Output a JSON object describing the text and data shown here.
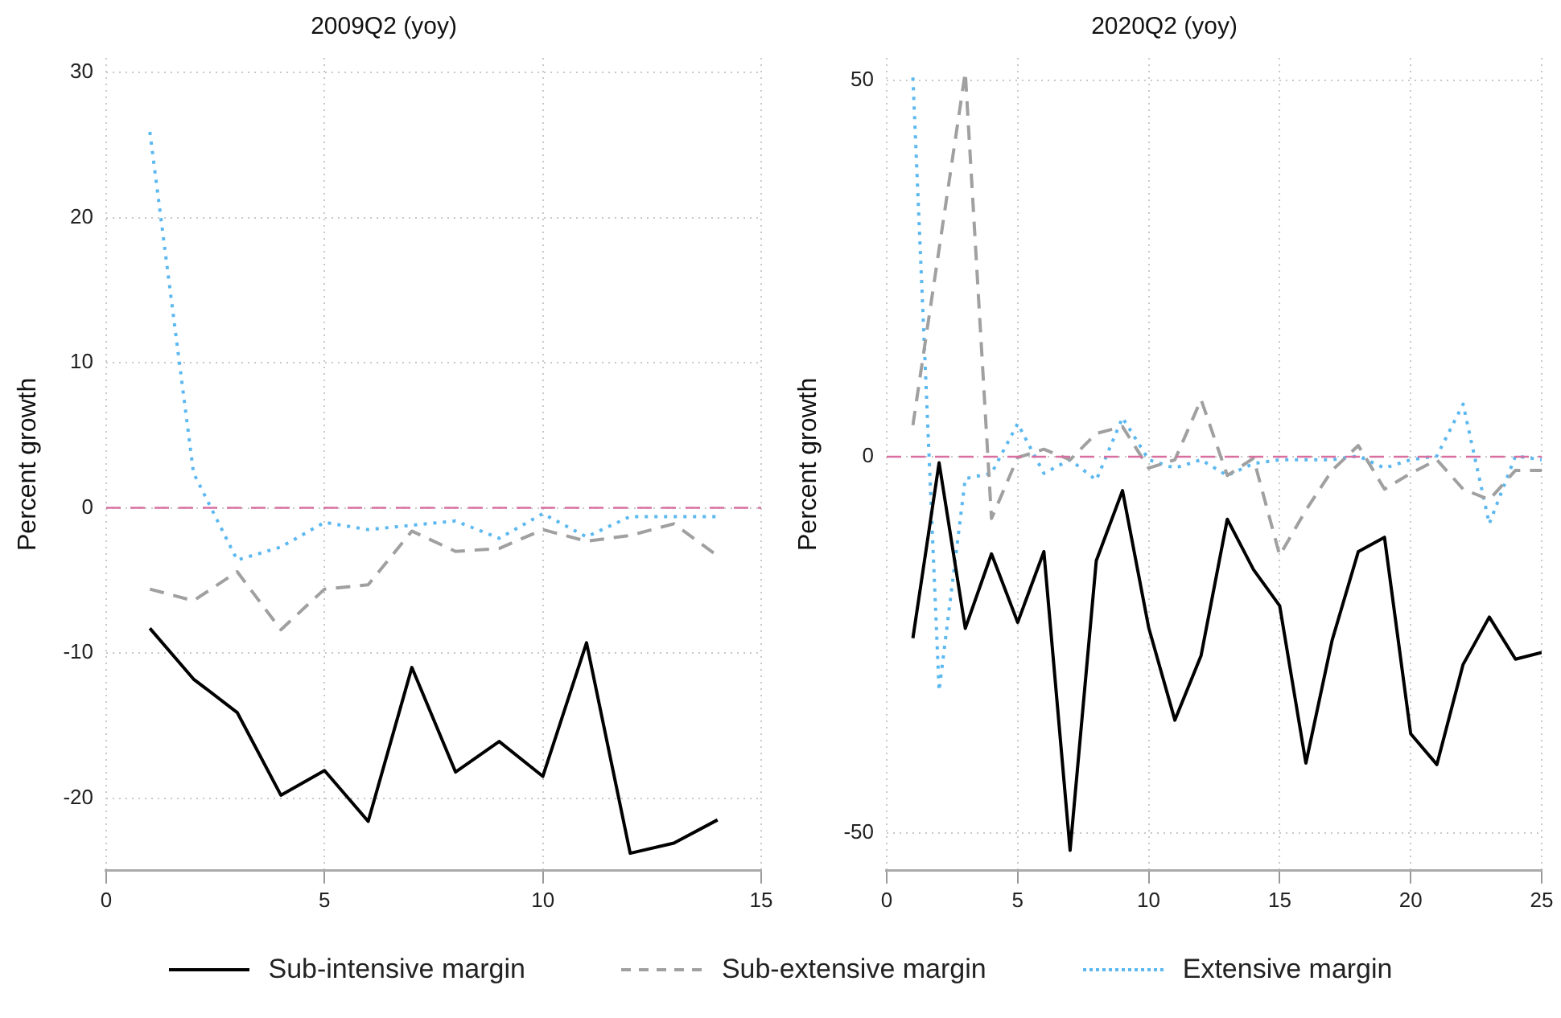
{
  "chart_data": [
    {
      "type": "line",
      "title": "2009Q2 (yoy)",
      "ylabel": "Percent growth",
      "x": [
        1,
        2,
        3,
        4,
        5,
        6,
        7,
        8,
        9,
        10,
        11,
        12,
        13,
        14
      ],
      "series": [
        {
          "name": "Sub-intensive margin",
          "color": "#000000",
          "line_style": "solid",
          "values": [
            -8.3,
            -11.8,
            -14.1,
            -19.8,
            -18.1,
            -21.6,
            -11.0,
            -18.2,
            -16.1,
            -18.5,
            -9.3,
            -23.8,
            -23.1,
            -21.5
          ]
        },
        {
          "name": "Sub-extensive margin",
          "color": "#a0a0a0",
          "line_style": "dashed",
          "values": [
            -5.6,
            -6.4,
            -4.4,
            -8.4,
            -5.6,
            -5.3,
            -1.6,
            -3.0,
            -2.8,
            -1.5,
            -2.3,
            -1.9,
            -1.1,
            -3.3
          ]
        },
        {
          "name": "Extensive margin",
          "color": "#5bb8f0",
          "line_style": "dotted",
          "values": [
            25.9,
            2.4,
            -3.6,
            -2.7,
            -1.0,
            -1.5,
            -1.2,
            -0.9,
            -2.1,
            -0.4,
            -2.0,
            -0.6,
            -0.6,
            -0.6
          ]
        }
      ],
      "xlim": [
        0,
        15
      ],
      "xticks": [
        0,
        5,
        10,
        15
      ],
      "ylim": [
        -25,
        31
      ],
      "yticks": [
        -20,
        -10,
        0,
        10,
        20,
        30
      ],
      "ref_lines": [
        {
          "axis": "y",
          "value": 0,
          "color": "#d96fa0",
          "line_style": "dashed"
        }
      ],
      "grid": true,
      "legend": "bottom",
      "marker": "none"
    },
    {
      "type": "line",
      "title": "2020Q2 (yoy)",
      "ylabel": "Percent growth",
      "x": [
        1,
        2,
        3,
        4,
        5,
        6,
        7,
        8,
        9,
        10,
        11,
        12,
        13,
        14,
        15,
        16,
        17,
        18,
        19,
        20,
        21,
        22,
        23,
        24,
        25
      ],
      "series": [
        {
          "color": "#000000",
          "line_style": "solid",
          "values": [
            -24.1,
            -0.8,
            -22.8,
            -12.9,
            -22.0,
            -12.6,
            -52.3,
            -13.8,
            -4.5,
            -22.7,
            -35.0,
            -26.4,
            -8.3,
            -15.0,
            -19.8,
            -40.7,
            -24.4,
            -12.6,
            -10.7,
            -36.8,
            -40.9,
            -27.6,
            -21.3,
            -26.9,
            -26.0
          ]
        },
        {
          "color": "#a0a0a0",
          "line_style": "dashed",
          "values": [
            4.2,
            27.6,
            51.1,
            -8.2,
            -0.1,
            1.0,
            -0.4,
            3.1,
            4.0,
            -1.5,
            -0.4,
            7.6,
            -2.5,
            -0.2,
            -13.1,
            -7.1,
            -1.8,
            1.5,
            -4.3,
            -2.2,
            -0.4,
            -4.3,
            -5.7,
            -1.8,
            -1.8
          ]
        },
        {
          "color": "#5bb8f0",
          "line_style": "dotted",
          "values": [
            50.4,
            -31.1,
            -2.9,
            -2.2,
            4.4,
            -2.2,
            -0.4,
            -3.1,
            5.2,
            -0.4,
            -1.5,
            -0.4,
            -2.5,
            -0.9,
            -0.4,
            -0.4,
            -0.4,
            0.1,
            -1.5,
            -0.4,
            0.1,
            7.0,
            -8.9,
            0.1,
            -0.4
          ]
        }
      ],
      "xlim": [
        0,
        25
      ],
      "xticks": [
        0,
        5,
        10,
        15,
        20,
        25
      ],
      "ylim": [
        -55,
        53
      ],
      "yticks": [
        -50,
        0,
        50
      ],
      "ref_lines": [
        {
          "axis": "y",
          "value": 0,
          "color": "#d96fa0",
          "line_style": "dashed"
        }
      ],
      "grid": true,
      "marker": "none"
    }
  ]
}
